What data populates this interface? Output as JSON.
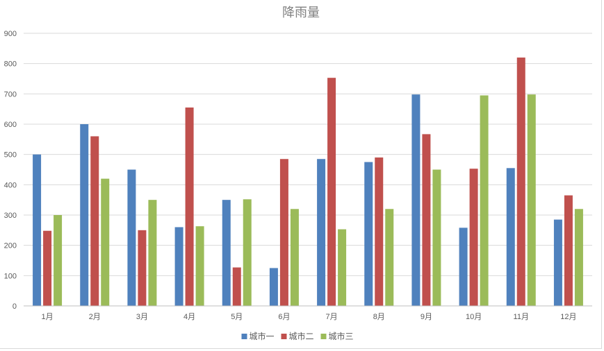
{
  "chart_data": {
    "type": "bar",
    "title": "降雨量",
    "xlabel": "",
    "ylabel": "",
    "ylim": [
      0,
      900
    ],
    "yticks": [
      0,
      100,
      200,
      300,
      400,
      500,
      600,
      700,
      800,
      900
    ],
    "grid": true,
    "legend_position": "bottom",
    "categories": [
      "1月",
      "2月",
      "3月",
      "4月",
      "5月",
      "6月",
      "7月",
      "8月",
      "9月",
      "10月",
      "11月",
      "12月"
    ],
    "series": [
      {
        "name": "城市一",
        "color": "#4f81bd",
        "values": [
          500,
          600,
          450,
          260,
          350,
          125,
          485,
          475,
          698,
          258,
          455,
          285
        ]
      },
      {
        "name": "城市二",
        "color": "#c0504d",
        "values": [
          248,
          560,
          250,
          655,
          127,
          485,
          753,
          490,
          567,
          453,
          820,
          365
        ]
      },
      {
        "name": "城市三",
        "color": "#9bbb59",
        "values": [
          300,
          420,
          350,
          263,
          352,
          320,
          253,
          320,
          450,
          695,
          698,
          320
        ]
      }
    ]
  }
}
